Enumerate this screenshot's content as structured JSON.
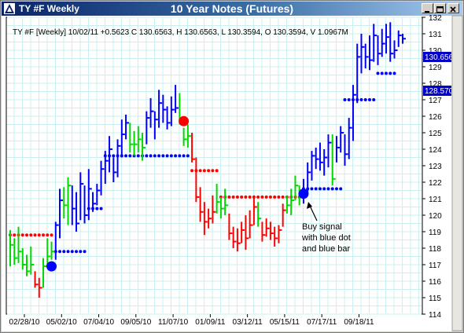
{
  "window": {
    "symbol_title": "TY #F Weekly",
    "chart_title": "10 Year Notes (Futures)"
  },
  "header": {
    "quote": "TY #F [Weekly] 10/02/11  +0.5623  C 130.6563,  H 130.6563,  L 130.3594,  O 130.3594,  V 1.0967M"
  },
  "annotation": {
    "lines": [
      "Buy signal",
      "with blue dot",
      "and blue bar"
    ]
  },
  "price_tags": {
    "close": "130.6563",
    "stop": "128.570"
  },
  "colors": {
    "background": "#ffffff",
    "grid": "#c8f0f0",
    "up_bar": "#0000ff",
    "down_bar": "#ff0000",
    "neutral_bar": "#00d800",
    "buy_dot": "#0000ff",
    "sell_dot": "#ff0000",
    "tag_bg": "#0000c8"
  },
  "chart_data": {
    "type": "ohlc",
    "x_tick_labels": [
      "02/28/10",
      "05/02/10",
      "07/04/10",
      "09/05/10",
      "11/07/10",
      "01/09/11",
      "03/12/11",
      "05/15/11",
      "07/17/11",
      "09/18/11"
    ],
    "y_tick_labels": [
      "114",
      "115",
      "116",
      "117",
      "118",
      "119",
      "120",
      "121",
      "122",
      "123",
      "124",
      "125",
      "126",
      "127",
      "128",
      "129",
      "130",
      "131",
      "132"
    ],
    "ylim": [
      114,
      132
    ],
    "bars": [
      {
        "h": 119.1,
        "l": 116.9,
        "c": 118.2,
        "color": "green"
      },
      {
        "h": 118.6,
        "l": 117.0,
        "c": 117.4,
        "color": "green"
      },
      {
        "h": 119.3,
        "l": 117.1,
        "c": 117.8,
        "color": "green"
      },
      {
        "h": 118.0,
        "l": 116.7,
        "c": 117.0,
        "color": "green"
      },
      {
        "h": 117.6,
        "l": 116.3,
        "c": 116.6,
        "color": "green"
      },
      {
        "h": 118.1,
        "l": 116.4,
        "c": 117.0,
        "color": "green"
      },
      {
        "h": 116.6,
        "l": 115.6,
        "c": 115.8,
        "color": "red"
      },
      {
        "h": 116.2,
        "l": 115.0,
        "c": 115.6,
        "color": "red"
      },
      {
        "h": 117.4,
        "l": 115.6,
        "c": 116.9,
        "color": "green"
      },
      {
        "h": 118.6,
        "l": 116.9,
        "c": 117.5,
        "color": "green"
      },
      {
        "h": 118.4,
        "l": 117.3,
        "c": 117.8,
        "color": "green"
      },
      {
        "h": 119.6,
        "l": 117.3,
        "c": 119.4,
        "color": "blue"
      },
      {
        "h": 121.6,
        "l": 118.6,
        "c": 120.9,
        "color": "blue"
      },
      {
        "h": 121.7,
        "l": 119.8,
        "c": 120.6,
        "color": "green"
      },
      {
        "h": 122.3,
        "l": 119.4,
        "c": 121.8,
        "color": "green"
      },
      {
        "h": 121.8,
        "l": 119.4,
        "c": 120.4,
        "color": "blue"
      },
      {
        "h": 121.4,
        "l": 119.0,
        "c": 119.5,
        "color": "blue"
      },
      {
        "h": 122.6,
        "l": 119.7,
        "c": 121.9,
        "color": "blue"
      },
      {
        "h": 121.8,
        "l": 119.5,
        "c": 120.0,
        "color": "blue"
      },
      {
        "h": 122.8,
        "l": 119.7,
        "c": 121.6,
        "color": "blue"
      },
      {
        "h": 121.4,
        "l": 120.2,
        "c": 120.7,
        "color": "blue"
      },
      {
        "h": 121.9,
        "l": 120.6,
        "c": 121.5,
        "color": "blue"
      },
      {
        "h": 123.3,
        "l": 121.2,
        "c": 122.8,
        "color": "blue"
      },
      {
        "h": 123.9,
        "l": 121.9,
        "c": 123.3,
        "color": "blue"
      },
      {
        "h": 124.8,
        "l": 122.6,
        "c": 124.0,
        "color": "blue"
      },
      {
        "h": 123.5,
        "l": 122.0,
        "c": 122.6,
        "color": "blue"
      },
      {
        "h": 124.6,
        "l": 122.3,
        "c": 124.2,
        "color": "blue"
      },
      {
        "h": 125.8,
        "l": 123.5,
        "c": 124.9,
        "color": "blue"
      },
      {
        "h": 126.1,
        "l": 124.6,
        "c": 125.6,
        "color": "blue"
      },
      {
        "h": 125.6,
        "l": 123.8,
        "c": 124.3,
        "color": "green"
      },
      {
        "h": 125.1,
        "l": 123.6,
        "c": 124.3,
        "color": "green"
      },
      {
        "h": 125.4,
        "l": 123.8,
        "c": 124.6,
        "color": "green"
      },
      {
        "h": 125.0,
        "l": 123.3,
        "c": 124.1,
        "color": "green"
      },
      {
        "h": 126.3,
        "l": 124.3,
        "c": 125.9,
        "color": "blue"
      },
      {
        "h": 127.1,
        "l": 125.3,
        "c": 126.3,
        "color": "blue"
      },
      {
        "h": 126.3,
        "l": 124.6,
        "c": 125.8,
        "color": "blue"
      },
      {
        "h": 127.6,
        "l": 125.3,
        "c": 126.8,
        "color": "blue"
      },
      {
        "h": 127.3,
        "l": 125.6,
        "c": 126.4,
        "color": "blue"
      },
      {
        "h": 126.6,
        "l": 125.2,
        "c": 125.6,
        "color": "blue"
      },
      {
        "h": 127.2,
        "l": 125.4,
        "c": 126.4,
        "color": "blue"
      },
      {
        "h": 127.9,
        "l": 126.2,
        "c": 126.5,
        "color": "blue"
      },
      {
        "h": 127.4,
        "l": 125.5,
        "c": 125.8,
        "color": "green"
      },
      {
        "h": 125.3,
        "l": 124.2,
        "c": 124.6,
        "color": "green"
      },
      {
        "h": 125.5,
        "l": 124.1,
        "c": 124.8,
        "color": "green"
      },
      {
        "h": 125.0,
        "l": 123.2,
        "c": 123.4,
        "color": "red"
      },
      {
        "h": 123.5,
        "l": 120.8,
        "c": 121.1,
        "color": "red"
      },
      {
        "h": 121.7,
        "l": 119.6,
        "c": 120.2,
        "color": "red"
      },
      {
        "h": 120.8,
        "l": 118.8,
        "c": 119.6,
        "color": "red"
      },
      {
        "h": 120.4,
        "l": 119.2,
        "c": 119.8,
        "color": "red"
      },
      {
        "h": 121.2,
        "l": 119.5,
        "c": 120.2,
        "color": "red"
      },
      {
        "h": 121.9,
        "l": 120.1,
        "c": 120.8,
        "color": "green"
      },
      {
        "h": 121.1,
        "l": 119.8,
        "c": 120.4,
        "color": "green"
      },
      {
        "h": 121.6,
        "l": 120.0,
        "c": 120.6,
        "color": "green"
      },
      {
        "h": 120.1,
        "l": 118.5,
        "c": 118.9,
        "color": "red"
      },
      {
        "h": 119.3,
        "l": 118.0,
        "c": 118.4,
        "color": "red"
      },
      {
        "h": 119.2,
        "l": 117.8,
        "c": 118.3,
        "color": "red"
      },
      {
        "h": 119.6,
        "l": 118.3,
        "c": 119.1,
        "color": "red"
      },
      {
        "h": 120.0,
        "l": 117.9,
        "c": 118.6,
        "color": "red"
      },
      {
        "h": 120.3,
        "l": 118.6,
        "c": 119.4,
        "color": "red"
      },
      {
        "h": 121.2,
        "l": 119.4,
        "c": 120.5,
        "color": "red"
      },
      {
        "h": 120.8,
        "l": 119.3,
        "c": 119.8,
        "color": "green"
      },
      {
        "h": 119.6,
        "l": 118.4,
        "c": 118.8,
        "color": "red"
      },
      {
        "h": 119.8,
        "l": 118.7,
        "c": 119.2,
        "color": "red"
      },
      {
        "h": 119.6,
        "l": 118.5,
        "c": 118.9,
        "color": "red"
      },
      {
        "h": 119.3,
        "l": 118.1,
        "c": 118.6,
        "color": "red"
      },
      {
        "h": 119.4,
        "l": 118.3,
        "c": 119.1,
        "color": "red"
      },
      {
        "h": 120.7,
        "l": 119.3,
        "c": 120.3,
        "color": "red"
      },
      {
        "h": 121.2,
        "l": 120.1,
        "c": 120.6,
        "color": "green"
      },
      {
        "h": 121.6,
        "l": 120.0,
        "c": 120.9,
        "color": "green"
      },
      {
        "h": 122.4,
        "l": 120.9,
        "c": 121.8,
        "color": "green"
      },
      {
        "h": 121.8,
        "l": 120.6,
        "c": 121.2,
        "color": "green"
      },
      {
        "h": 122.2,
        "l": 120.7,
        "c": 121.4,
        "color": "blue"
      },
      {
        "h": 123.2,
        "l": 121.3,
        "c": 122.6,
        "color": "blue"
      },
      {
        "h": 123.9,
        "l": 122.1,
        "c": 123.6,
        "color": "blue"
      },
      {
        "h": 124.1,
        "l": 122.8,
        "c": 123.4,
        "color": "blue"
      },
      {
        "h": 124.4,
        "l": 122.7,
        "c": 123.2,
        "color": "blue"
      },
      {
        "h": 124.0,
        "l": 122.4,
        "c": 123.5,
        "color": "blue"
      },
      {
        "h": 124.9,
        "l": 122.9,
        "c": 124.4,
        "color": "blue"
      },
      {
        "h": 124.9,
        "l": 121.8,
        "c": 122.2,
        "color": "green"
      },
      {
        "h": 124.8,
        "l": 123.2,
        "c": 124.1,
        "color": "blue"
      },
      {
        "h": 125.4,
        "l": 123.8,
        "c": 125.0,
        "color": "blue"
      },
      {
        "h": 124.9,
        "l": 123.0,
        "c": 123.7,
        "color": "blue"
      },
      {
        "h": 125.9,
        "l": 123.4,
        "c": 125.3,
        "color": "blue"
      },
      {
        "h": 127.9,
        "l": 124.5,
        "c": 127.3,
        "color": "blue"
      },
      {
        "h": 130.4,
        "l": 126.8,
        "c": 129.6,
        "color": "blue"
      },
      {
        "h": 131.0,
        "l": 128.6,
        "c": 130.2,
        "color": "blue"
      },
      {
        "h": 130.4,
        "l": 128.9,
        "c": 129.6,
        "color": "blue"
      },
      {
        "h": 130.9,
        "l": 128.8,
        "c": 129.4,
        "color": "blue"
      },
      {
        "h": 131.6,
        "l": 129.3,
        "c": 130.9,
        "color": "blue"
      },
      {
        "h": 130.9,
        "l": 129.1,
        "c": 129.8,
        "color": "blue"
      },
      {
        "h": 131.3,
        "l": 129.6,
        "c": 130.4,
        "color": "blue"
      },
      {
        "h": 131.6,
        "l": 129.8,
        "c": 130.8,
        "color": "blue"
      },
      {
        "h": 131.7,
        "l": 129.3,
        "c": 129.8,
        "color": "blue"
      },
      {
        "h": 130.6,
        "l": 129.5,
        "c": 130.0,
        "color": "blue"
      },
      {
        "h": 131.2,
        "l": 130.2,
        "c": 130.9,
        "color": "blue"
      },
      {
        "h": 131.0,
        "l": 130.4,
        "c": 130.7,
        "color": "blue"
      }
    ],
    "stop_dots": [
      {
        "from": 0,
        "to": 10,
        "value": 118.8,
        "color": "red"
      },
      {
        "from": 11,
        "to": 18,
        "value": 117.8,
        "color": "blue"
      },
      {
        "from": 19,
        "to": 22,
        "value": 120.4,
        "color": "blue"
      },
      {
        "from": 23,
        "to": 43,
        "value": 123.6,
        "color": "blue"
      },
      {
        "from": 44,
        "to": 50,
        "value": 122.7,
        "color": "red"
      },
      {
        "from": 51,
        "to": 70,
        "value": 121.1,
        "color": "red"
      },
      {
        "from": 71,
        "to": 80,
        "value": 121.6,
        "color": "blue"
      },
      {
        "from": 81,
        "to": 88,
        "value": 127.0,
        "color": "blue"
      },
      {
        "from": 89,
        "to": 93,
        "value": 128.6,
        "color": "blue"
      }
    ],
    "signals": [
      {
        "bar": 10,
        "value": 116.9,
        "type": "buy"
      },
      {
        "bar": 42,
        "value": 125.7,
        "type": "sell"
      },
      {
        "bar": 71,
        "value": 121.3,
        "type": "buy"
      }
    ]
  }
}
